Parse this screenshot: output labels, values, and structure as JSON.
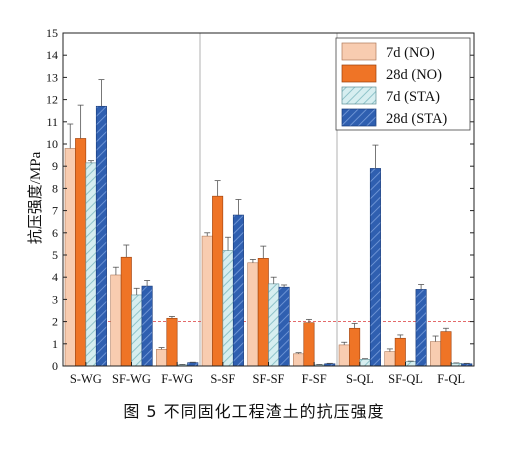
{
  "figure": {
    "caption": "图 5 不同固化工程渣土的抗压强度"
  },
  "chart_data": {
    "type": "bar",
    "ylabel": "抗压强度/MPa",
    "xlabel": "",
    "ylim": [
      0,
      15
    ],
    "yticks": [
      0,
      1,
      2,
      3,
      4,
      5,
      6,
      7,
      8,
      9,
      10,
      11,
      12,
      13,
      14,
      15
    ],
    "categories": [
      "S-WG",
      "SF-WG",
      "F-WG",
      "S-SF",
      "SF-SF",
      "F-SF",
      "S-QL",
      "SF-QL",
      "F-QL"
    ],
    "groups": [
      {
        "from": 0,
        "to": 2
      },
      {
        "from": 3,
        "to": 5
      },
      {
        "from": 6,
        "to": 8
      }
    ],
    "reference_line": 2,
    "legend_position": "top-right",
    "series": [
      {
        "name": "7d (NO)",
        "fill": "#f8ccb0",
        "stroke": "#b07a5a",
        "pattern": "none",
        "values": [
          9.8,
          4.1,
          0.75,
          5.85,
          4.65,
          0.55,
          0.95,
          0.65,
          1.1
        ],
        "errors": [
          1.1,
          0.35,
          0.08,
          0.15,
          0.15,
          0.05,
          0.12,
          0.12,
          0.25
        ]
      },
      {
        "name": "28d (NO)",
        "fill": "#ef7426",
        "stroke": "#9a3f0c",
        "pattern": "none",
        "values": [
          10.25,
          4.9,
          2.15,
          7.65,
          4.85,
          1.95,
          1.7,
          1.25,
          1.55
        ],
        "errors": [
          1.5,
          0.55,
          0.08,
          0.7,
          0.55,
          0.15,
          0.22,
          0.15,
          0.15
        ]
      },
      {
        "name": "7d (STA)",
        "fill": "#d6eef0",
        "stroke": "#5f8f96",
        "pattern": "light-hatch",
        "values": [
          9.15,
          3.2,
          0.05,
          5.2,
          3.7,
          0.05,
          0.3,
          0.2,
          0.12
        ],
        "errors": [
          0.1,
          0.3,
          0.02,
          0.6,
          0.3,
          0.02,
          0.03,
          0.02,
          0.02
        ]
      },
      {
        "name": "28d (STA)",
        "fill": "#2f5fb0",
        "stroke": "#183a78",
        "pattern": "dark-hatch",
        "values": [
          11.7,
          3.6,
          0.15,
          6.8,
          3.55,
          0.1,
          8.9,
          3.45,
          0.1
        ],
        "errors": [
          1.2,
          0.25,
          0.02,
          0.7,
          0.1,
          0.02,
          1.05,
          0.22,
          0.02
        ]
      }
    ]
  }
}
